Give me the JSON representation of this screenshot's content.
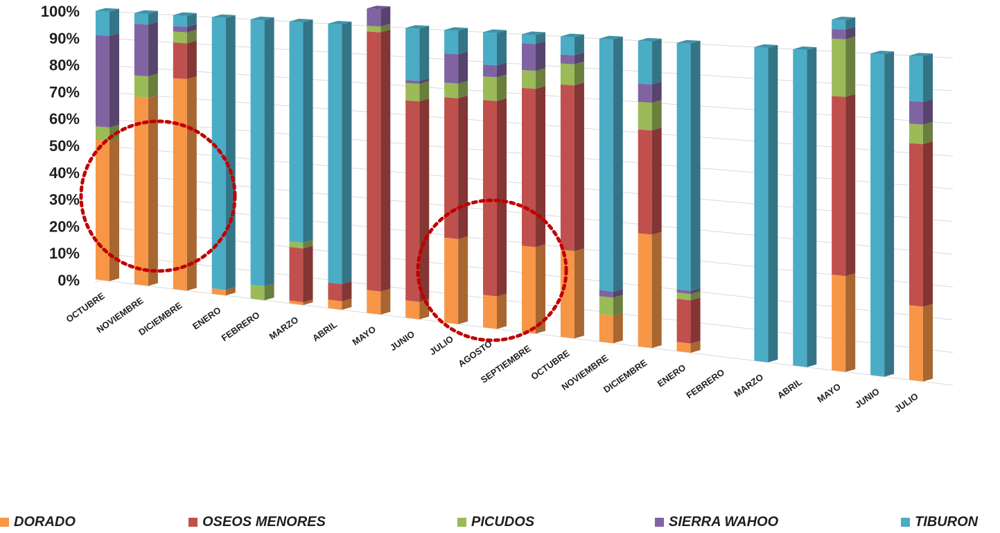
{
  "chart_data": {
    "type": "bar",
    "stacked": "percent",
    "three_d": true,
    "title": "",
    "xlabel": "",
    "ylabel": "",
    "ylim": [
      0,
      100
    ],
    "y_ticks": [
      "0%",
      "10%",
      "20%",
      "30%",
      "40%",
      "50%",
      "60%",
      "70%",
      "80%",
      "90%",
      "100%"
    ],
    "grid": true,
    "legend_position": "bottom",
    "categories": [
      "OCTUBRE",
      "NOVIEMBRE",
      "DICIEMBRE",
      "ENERO",
      "FEBRERO",
      "MARZO",
      "ABRIL",
      "MAYO",
      "JUNIO",
      "JULIO",
      "AGOSTO",
      "SEPTIEMBRE",
      "OCTUBRE",
      "NOVIEMBRE",
      "DICIEMBRE",
      "ENERO",
      "FEBRERO",
      "MARZO",
      "ABRIL",
      "MAYO",
      "JUNIO",
      "JULIO"
    ],
    "series": [
      {
        "name": "DORADO",
        "color": "#F79646",
        "values": [
          52,
          69,
          77,
          2,
          0,
          1,
          3,
          8,
          6,
          29,
          11,
          29,
          29,
          9,
          37,
          3,
          0,
          0,
          0,
          30,
          0,
          23
        ]
      },
      {
        "name": "OSEOS MENORES",
        "color": "#C0504D",
        "values": [
          0,
          0,
          13,
          0,
          0,
          19,
          6,
          90,
          69,
          48,
          66,
          53,
          55,
          0,
          34,
          14,
          0,
          0,
          0,
          56,
          0,
          50
        ]
      },
      {
        "name": "PICUDOS",
        "color": "#9BBB59",
        "values": [
          5,
          8,
          4,
          0,
          5,
          2,
          0,
          2,
          6,
          5,
          8,
          6,
          7,
          6,
          9,
          2,
          0,
          0,
          0,
          18,
          0,
          6
        ]
      },
      {
        "name": "SIERRA WAHOO",
        "color": "#8064A2",
        "values": [
          34,
          19,
          2,
          0,
          0,
          0,
          0,
          6,
          1,
          10,
          4,
          9,
          3,
          2,
          6,
          1,
          0,
          0,
          0,
          3,
          0,
          7
        ]
      },
      {
        "name": "TIBURON",
        "color": "#4BACC6",
        "values": [
          9,
          4,
          4,
          98,
          95,
          78,
          91,
          0,
          18,
          8,
          11,
          3,
          6,
          83,
          14,
          80,
          0,
          100,
          100,
          3,
          100,
          14
        ]
      }
    ],
    "annotations": [
      {
        "type": "dashed-ellipse",
        "color": "#C00000",
        "around": [
          "OCTUBRE",
          "NOVIEMBRE",
          "DICIEMBRE"
        ]
      },
      {
        "type": "dashed-ellipse",
        "color": "#C00000",
        "around": [
          "JULIO",
          "AGOSTO",
          "SEPTIEMBRE",
          "OCTUBRE"
        ]
      }
    ]
  }
}
